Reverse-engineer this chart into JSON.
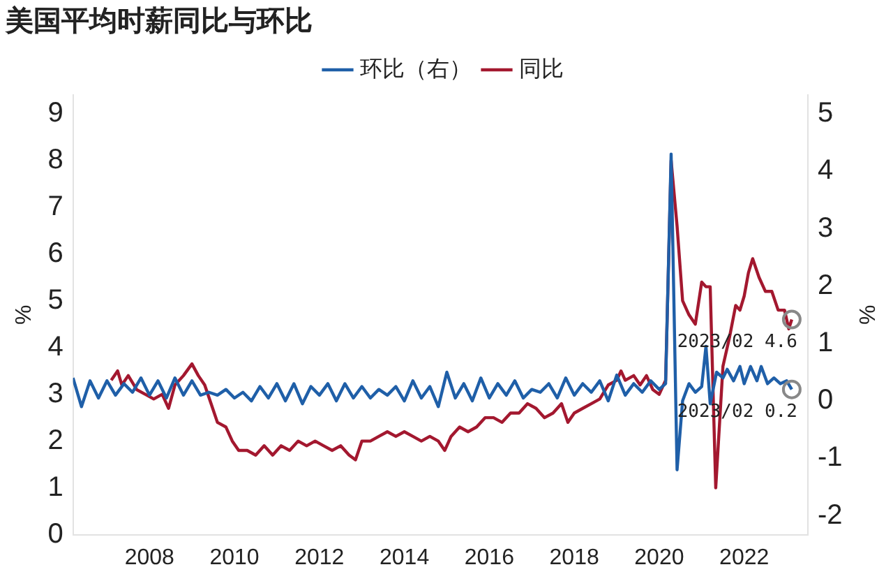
{
  "chart_data": {
    "type": "line",
    "title": "美国平均时薪同比与环比",
    "ylabel": "%",
    "y2label": "%",
    "legend": "top",
    "grid": false,
    "marker": "none",
    "line_style": "solid",
    "xlim": [
      2006.2,
      2023.5
    ],
    "xticks": [
      2008,
      2010,
      2012,
      2014,
      2016,
      2018,
      2020,
      2022
    ],
    "ylim": [
      0,
      9.4
    ],
    "yticks": [
      0,
      1,
      2,
      3,
      4,
      5,
      6,
      7,
      8,
      9
    ],
    "y2lim": [
      -2.33,
      5.33
    ],
    "y2ticks": [
      -2,
      -1,
      0,
      1,
      2,
      3,
      4,
      5
    ],
    "annotations": [
      {
        "text": "2023/02 4.6",
        "x": 2023.12,
        "y": 4.6
      },
      "2023/02 0.2"
    ],
    "series": [
      {
        "name": "环比（右）",
        "color": "#1f5fa8",
        "axis": "y2",
        "x": [
          2006.2,
          2006.4,
          2006.6,
          2006.8,
          2007.0,
          2007.2,
          2007.4,
          2007.6,
          2007.8,
          2008.0,
          2008.2,
          2008.4,
          2008.6,
          2008.8,
          2009.0,
          2009.2,
          2009.4,
          2009.6,
          2009.8,
          2010.0,
          2010.2,
          2010.4,
          2010.6,
          2010.8,
          2011.0,
          2011.2,
          2011.4,
          2011.6,
          2011.8,
          2012.0,
          2012.2,
          2012.4,
          2012.6,
          2012.8,
          2013.0,
          2013.2,
          2013.4,
          2013.6,
          2013.8,
          2014.0,
          2014.2,
          2014.4,
          2014.6,
          2014.8,
          2015.0,
          2015.2,
          2015.4,
          2015.6,
          2015.8,
          2016.0,
          2016.2,
          2016.4,
          2016.6,
          2016.8,
          2017.0,
          2017.2,
          2017.4,
          2017.6,
          2017.8,
          2018.0,
          2018.2,
          2018.4,
          2018.6,
          2018.8,
          2019.0,
          2019.2,
          2019.4,
          2019.6,
          2019.8,
          2020.0,
          2020.15,
          2020.28,
          2020.42,
          2020.55,
          2020.7,
          2020.85,
          2021.0,
          2021.1,
          2021.2,
          2021.35,
          2021.5,
          2021.6,
          2021.75,
          2021.9,
          2022.0,
          2022.15,
          2022.3,
          2022.4,
          2022.55,
          2022.7,
          2022.85,
          2023.0,
          2023.12
        ],
        "values": [
          0.4,
          -0.1,
          0.35,
          0.05,
          0.35,
          0.1,
          0.3,
          0.15,
          0.4,
          0.1,
          0.35,
          0.05,
          0.4,
          0.1,
          0.35,
          0.1,
          0.15,
          0.1,
          0.2,
          0.05,
          0.15,
          0.0,
          0.25,
          0.05,
          0.3,
          0.0,
          0.3,
          -0.05,
          0.25,
          0.1,
          0.3,
          0.0,
          0.3,
          0.05,
          0.25,
          0.05,
          0.2,
          0.1,
          0.25,
          0.0,
          0.35,
          0.05,
          0.25,
          -0.1,
          0.5,
          0.05,
          0.3,
          0.0,
          0.4,
          0.05,
          0.3,
          0.1,
          0.35,
          0.05,
          0.2,
          0.15,
          0.3,
          0.05,
          0.4,
          0.1,
          0.3,
          0.15,
          0.35,
          0.0,
          0.45,
          0.1,
          0.3,
          0.15,
          0.35,
          0.2,
          0.3,
          4.3,
          -1.2,
          0.0,
          0.3,
          0.15,
          0.25,
          0.95,
          -0.05,
          0.5,
          0.4,
          0.55,
          0.35,
          0.6,
          0.3,
          0.6,
          0.35,
          0.6,
          0.3,
          0.4,
          0.3,
          0.35,
          0.2
        ]
      },
      {
        "name": "同比",
        "color": "#a3182f",
        "x": [
          2007.1,
          2007.25,
          2007.35,
          2007.5,
          2007.7,
          2007.9,
          2008.1,
          2008.3,
          2008.45,
          2008.6,
          2008.8,
          2009.0,
          2009.15,
          2009.3,
          2009.45,
          2009.6,
          2009.8,
          2009.95,
          2010.1,
          2010.3,
          2010.5,
          2010.7,
          2010.9,
          2011.1,
          2011.3,
          2011.5,
          2011.7,
          2011.9,
          2012.1,
          2012.3,
          2012.5,
          2012.7,
          2012.85,
          2013.0,
          2013.2,
          2013.4,
          2013.6,
          2013.8,
          2014.0,
          2014.2,
          2014.4,
          2014.6,
          2014.8,
          2014.95,
          2015.1,
          2015.3,
          2015.5,
          2015.7,
          2015.9,
          2016.1,
          2016.3,
          2016.5,
          2016.7,
          2016.9,
          2017.1,
          2017.3,
          2017.5,
          2017.7,
          2017.85,
          2018.0,
          2018.2,
          2018.4,
          2018.6,
          2018.8,
          2019.0,
          2019.1,
          2019.2,
          2019.4,
          2019.55,
          2019.7,
          2019.85,
          2020.0,
          2020.15,
          2020.28,
          2020.42,
          2020.55,
          2020.7,
          2020.85,
          2021.0,
          2021.1,
          2021.2,
          2021.33,
          2021.5,
          2021.65,
          2021.8,
          2021.9,
          2022.0,
          2022.1,
          2022.2,
          2022.35,
          2022.5,
          2022.65,
          2022.8,
          2022.95,
          2023.05,
          2023.12
        ],
        "values": [
          3.3,
          3.5,
          3.2,
          3.4,
          3.1,
          3.0,
          2.9,
          3.0,
          2.7,
          3.2,
          3.4,
          3.65,
          3.4,
          3.2,
          2.8,
          2.4,
          2.3,
          2.0,
          1.8,
          1.8,
          1.7,
          1.9,
          1.7,
          1.9,
          1.8,
          2.0,
          1.9,
          2.0,
          1.9,
          1.8,
          1.9,
          1.7,
          1.6,
          2.0,
          2.0,
          2.1,
          2.2,
          2.1,
          2.2,
          2.1,
          2.0,
          2.1,
          2.0,
          1.8,
          2.1,
          2.3,
          2.2,
          2.3,
          2.5,
          2.5,
          2.4,
          2.6,
          2.6,
          2.8,
          2.7,
          2.5,
          2.6,
          2.8,
          2.4,
          2.6,
          2.7,
          2.8,
          2.9,
          3.2,
          3.3,
          3.5,
          3.3,
          3.4,
          3.2,
          3.4,
          3.1,
          3.0,
          3.3,
          8.0,
          6.6,
          5.0,
          4.7,
          4.5,
          5.4,
          5.3,
          5.3,
          1.0,
          3.6,
          4.2,
          4.9,
          4.8,
          5.1,
          5.6,
          5.9,
          5.5,
          5.2,
          5.2,
          4.8,
          4.8,
          4.4,
          4.6
        ]
      }
    ]
  }
}
